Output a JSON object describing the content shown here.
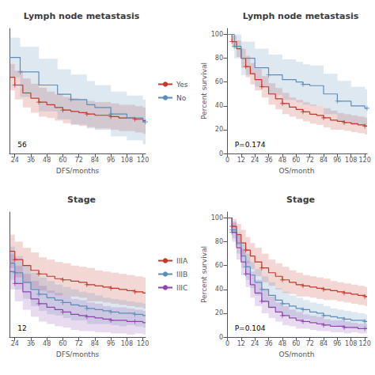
{
  "chart_data": [
    {
      "type": "line",
      "line_style": "step",
      "marker": "+",
      "grid": false,
      "title": "Lymph node metastasis",
      "xlabel": "DFS/months",
      "xlim": [
        20,
        122
      ],
      "xticks": [
        24,
        36,
        48,
        60,
        72,
        84,
        96,
        108,
        120
      ],
      "ylim": [
        10,
        105
      ],
      "tick_labels": "x",
      "legend": "right",
      "annotations": [
        "56"
      ],
      "series": [
        {
          "name": "Yes",
          "color": "#c0392b",
          "x": [
            20,
            24,
            30,
            36,
            42,
            48,
            54,
            60,
            66,
            72,
            78,
            84,
            90,
            96,
            102,
            108,
            114,
            120,
            122
          ],
          "values": [
            68,
            62,
            56,
            52,
            49,
            47,
            45,
            43,
            42,
            41,
            40,
            39,
            39,
            38,
            37,
            37,
            36,
            35,
            35
          ],
          "ci_upper": [
            78,
            73,
            67,
            63,
            60,
            57,
            55,
            53,
            52,
            51,
            50,
            49,
            49,
            48,
            47,
            47,
            46,
            45,
            45
          ],
          "ci_lower": [
            58,
            51,
            45,
            41,
            38,
            37,
            35,
            33,
            32,
            31,
            30,
            29,
            29,
            28,
            27,
            27,
            26,
            25,
            25
          ]
        },
        {
          "name": "No",
          "color": "#5b8db8",
          "x": [
            20,
            28,
            42,
            56,
            66,
            78,
            84,
            96,
            108,
            120,
            122
          ],
          "values": [
            83,
            72,
            62,
            55,
            51,
            47,
            45,
            40,
            37,
            34,
            34
          ],
          "ci_upper": [
            98,
            91,
            82,
            74,
            70,
            65,
            62,
            57,
            54,
            51,
            51
          ],
          "ci_lower": [
            68,
            53,
            42,
            36,
            32,
            29,
            28,
            23,
            20,
            17,
            17
          ]
        }
      ]
    },
    {
      "type": "line",
      "line_style": "step",
      "marker": "+",
      "grid": false,
      "title": "Lymph node metastasis",
      "xlabel": "OS/month",
      "ylabel": "Percent survival",
      "xlim": [
        -1,
        122
      ],
      "xticks": [
        0,
        12,
        24,
        36,
        48,
        60,
        72,
        84,
        96,
        108,
        120
      ],
      "ylim": [
        0,
        105
      ],
      "yticks": [
        0,
        20,
        40,
        60,
        80,
        100
      ],
      "annotations": [
        "P=0.174"
      ],
      "series": [
        {
          "name": "Yes",
          "color": "#c0392b",
          "x": [
            0,
            4,
            8,
            12,
            16,
            20,
            24,
            30,
            36,
            42,
            48,
            54,
            60,
            66,
            72,
            78,
            84,
            90,
            96,
            102,
            108,
            114,
            120,
            122
          ],
          "values": [
            100,
            94,
            88,
            80,
            73,
            67,
            62,
            56,
            50,
            46,
            42,
            39,
            37,
            35,
            33,
            32,
            30,
            28,
            27,
            26,
            25,
            24,
            23,
            23
          ],
          "ci_upper": [
            100,
            99,
            95,
            88,
            82,
            76,
            71,
            65,
            59,
            55,
            51,
            47,
            45,
            43,
            41,
            40,
            38,
            36,
            34,
            33,
            32,
            31,
            30,
            30
          ],
          "ci_lower": [
            100,
            89,
            81,
            72,
            64,
            58,
            53,
            47,
            41,
            37,
            33,
            31,
            29,
            27,
            25,
            24,
            22,
            20,
            20,
            19,
            18,
            17,
            16,
            16
          ]
        },
        {
          "name": "No",
          "color": "#5b8db8",
          "x": [
            0,
            6,
            12,
            24,
            36,
            48,
            60,
            66,
            72,
            84,
            96,
            108,
            120,
            122
          ],
          "values": [
            100,
            90,
            80,
            72,
            66,
            62,
            60,
            58,
            57,
            50,
            44,
            40,
            38,
            38
          ],
          "ci_upper": [
            100,
            100,
            94,
            88,
            83,
            79,
            77,
            75,
            74,
            67,
            61,
            56,
            54,
            54
          ],
          "ci_lower": [
            100,
            80,
            66,
            56,
            49,
            45,
            43,
            41,
            40,
            33,
            27,
            24,
            22,
            22
          ]
        }
      ]
    },
    {
      "type": "line",
      "line_style": "step",
      "marker": "+",
      "grid": false,
      "title": "Stage",
      "xlabel": "DFS/months",
      "xlim": [
        20,
        122
      ],
      "xticks": [
        24,
        36,
        48,
        60,
        72,
        84,
        96,
        108,
        120
      ],
      "ylim": [
        0,
        105
      ],
      "tick_labels": "x",
      "legend": "right",
      "annotations": [
        "12"
      ],
      "series": [
        {
          "name": "IIIA",
          "color": "#c0392b",
          "x": [
            20,
            24,
            30,
            36,
            42,
            48,
            54,
            60,
            66,
            72,
            78,
            84,
            90,
            96,
            102,
            108,
            114,
            120,
            122
          ],
          "values": [
            72,
            65,
            60,
            56,
            53,
            51,
            49,
            48,
            47,
            46,
            44,
            43,
            42,
            41,
            40,
            39,
            38,
            37,
            37
          ],
          "ci_upper": [
            86,
            80,
            75,
            71,
            67,
            65,
            63,
            62,
            60,
            59,
            58,
            56,
            55,
            54,
            53,
            52,
            51,
            50,
            50
          ],
          "ci_lower": [
            58,
            50,
            45,
            41,
            39,
            37,
            35,
            34,
            34,
            33,
            30,
            30,
            29,
            28,
            27,
            26,
            25,
            24,
            24
          ]
        },
        {
          "name": "IIIB",
          "color": "#5b8db8",
          "x": [
            20,
            24,
            30,
            36,
            42,
            48,
            54,
            60,
            66,
            72,
            78,
            84,
            90,
            96,
            102,
            108,
            114,
            120,
            122
          ],
          "values": [
            62,
            54,
            46,
            40,
            36,
            33,
            31,
            29,
            27,
            26,
            24,
            23,
            22,
            21,
            20,
            20,
            19,
            18,
            18
          ],
          "ci_upper": [
            76,
            68,
            60,
            54,
            50,
            47,
            44,
            42,
            40,
            38,
            37,
            35,
            33,
            32,
            31,
            30,
            29,
            28,
            28
          ],
          "ci_lower": [
            48,
            40,
            32,
            26,
            22,
            19,
            18,
            16,
            14,
            14,
            11,
            11,
            11,
            10,
            9,
            10,
            9,
            8,
            8
          ]
        },
        {
          "name": "IIIC",
          "color": "#8e44ad",
          "x": [
            20,
            24,
            30,
            36,
            42,
            48,
            54,
            60,
            66,
            72,
            78,
            84,
            90,
            96,
            102,
            108,
            114,
            120,
            122
          ],
          "values": [
            55,
            45,
            38,
            32,
            28,
            25,
            23,
            21,
            19,
            18,
            17,
            16,
            15,
            14,
            14,
            13,
            13,
            12,
            12
          ],
          "ci_upper": [
            70,
            60,
            53,
            47,
            43,
            39,
            37,
            34,
            32,
            31,
            29,
            28,
            26,
            25,
            25,
            24,
            23,
            22,
            22
          ],
          "ci_lower": [
            40,
            30,
            23,
            17,
            13,
            11,
            9,
            8,
            6,
            5,
            5,
            4,
            4,
            3,
            3,
            2,
            3,
            2,
            2
          ]
        }
      ]
    },
    {
      "type": "line",
      "line_style": "step",
      "marker": "+",
      "grid": false,
      "title": "Stage",
      "xlabel": "OS/month",
      "ylabel": "Percent survival",
      "xlim": [
        -1,
        122
      ],
      "xticks": [
        0,
        12,
        24,
        36,
        48,
        60,
        72,
        84,
        96,
        108,
        120
      ],
      "ylim": [
        0,
        105
      ],
      "yticks": [
        0,
        20,
        40,
        60,
        80,
        100
      ],
      "annotations": [
        "P=0.104"
      ],
      "series": [
        {
          "name": "IIIA",
          "color": "#c0392b",
          "x": [
            0,
            4,
            8,
            12,
            16,
            20,
            24,
            30,
            36,
            42,
            48,
            54,
            60,
            66,
            72,
            78,
            84,
            90,
            96,
            102,
            108,
            114,
            120,
            122
          ],
          "values": [
            100,
            93,
            86,
            79,
            73,
            68,
            63,
            58,
            54,
            51,
            48,
            46,
            44,
            43,
            42,
            41,
            40,
            39,
            38,
            37,
            36,
            35,
            34,
            34
          ],
          "ci_upper": [
            100,
            99,
            95,
            90,
            84,
            79,
            75,
            70,
            65,
            62,
            59,
            56,
            54,
            52,
            51,
            50,
            49,
            47,
            46,
            45,
            44,
            43,
            42,
            42
          ],
          "ci_lower": [
            100,
            87,
            77,
            68,
            62,
            57,
            51,
            46,
            43,
            40,
            37,
            36,
            34,
            34,
            33,
            32,
            31,
            31,
            30,
            29,
            28,
            27,
            26,
            26
          ]
        },
        {
          "name": "IIIB",
          "color": "#5b8db8",
          "x": [
            0,
            4,
            8,
            12,
            16,
            20,
            24,
            30,
            36,
            42,
            48,
            54,
            60,
            66,
            72,
            78,
            84,
            90,
            96,
            102,
            108,
            114,
            120,
            122
          ],
          "values": [
            100,
            90,
            79,
            68,
            59,
            52,
            46,
            40,
            35,
            31,
            28,
            26,
            24,
            23,
            21,
            20,
            18,
            17,
            16,
            15,
            14,
            14,
            13,
            13
          ],
          "ci_upper": [
            100,
            97,
            88,
            78,
            70,
            63,
            57,
            51,
            46,
            41,
            38,
            35,
            33,
            31,
            29,
            28,
            26,
            24,
            23,
            22,
            21,
            20,
            19,
            19
          ],
          "ci_lower": [
            100,
            83,
            70,
            58,
            48,
            41,
            35,
            29,
            24,
            21,
            18,
            17,
            15,
            15,
            13,
            12,
            10,
            10,
            9,
            8,
            7,
            8,
            7,
            7
          ]
        },
        {
          "name": "IIIC",
          "color": "#8e44ad",
          "x": [
            0,
            4,
            8,
            12,
            16,
            20,
            24,
            30,
            36,
            42,
            48,
            54,
            60,
            66,
            72,
            78,
            84,
            90,
            96,
            102,
            108,
            114,
            120,
            122
          ],
          "values": [
            100,
            88,
            75,
            63,
            53,
            44,
            37,
            30,
            25,
            21,
            18,
            16,
            14,
            13,
            12,
            11,
            10,
            9,
            9,
            8,
            8,
            7,
            7,
            7
          ],
          "ci_upper": [
            100,
            96,
            85,
            74,
            64,
            55,
            48,
            40,
            34,
            29,
            26,
            23,
            21,
            19,
            18,
            17,
            15,
            14,
            14,
            13,
            12,
            11,
            11,
            11
          ],
          "ci_lower": [
            100,
            80,
            65,
            52,
            42,
            33,
            26,
            20,
            16,
            13,
            10,
            9,
            7,
            7,
            6,
            5,
            5,
            4,
            4,
            3,
            4,
            3,
            3,
            3
          ]
        }
      ]
    }
  ]
}
